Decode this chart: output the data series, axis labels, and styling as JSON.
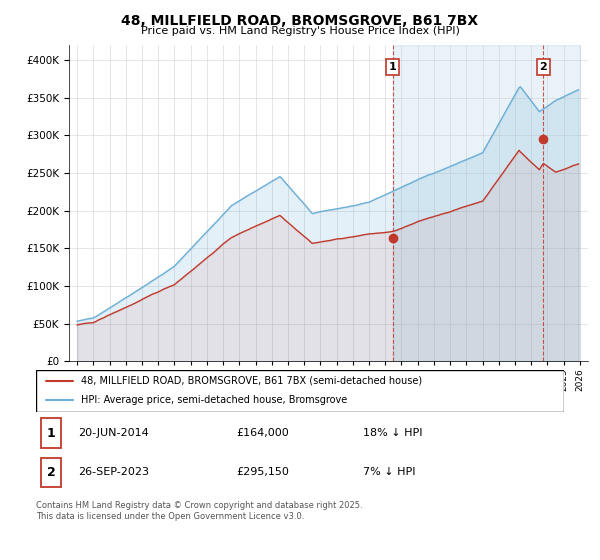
{
  "title": "48, MILLFIELD ROAD, BROMSGROVE, B61 7BX",
  "subtitle": "Price paid vs. HM Land Registry's House Price Index (HPI)",
  "legend_line1": "48, MILLFIELD ROAD, BROMSGROVE, B61 7BX (semi-detached house)",
  "legend_line2": "HPI: Average price, semi-detached house, Bromsgrove",
  "annotation1_date": "20-JUN-2014",
  "annotation1_price": 164000,
  "annotation1_text": "18% ↓ HPI",
  "annotation2_date": "26-SEP-2023",
  "annotation2_price": 295150,
  "annotation2_text": "7% ↓ HPI",
  "footnote": "Contains HM Land Registry data © Crown copyright and database right 2025.\nThis data is licensed under the Open Government Licence v3.0.",
  "hpi_color": "#6baed6",
  "price_color": "#c0392b",
  "annotation_color": "#c0392b",
  "grid_color": "#cccccc",
  "bg_shaded_color": "#ddeeff",
  "ylim": [
    0,
    420000
  ],
  "yticks": [
    0,
    50000,
    100000,
    150000,
    200000,
    250000,
    300000,
    350000,
    400000
  ],
  "sale1_year": 2014.46,
  "sale1_price": 164000,
  "sale2_year": 2023.74,
  "sale2_price": 295150
}
